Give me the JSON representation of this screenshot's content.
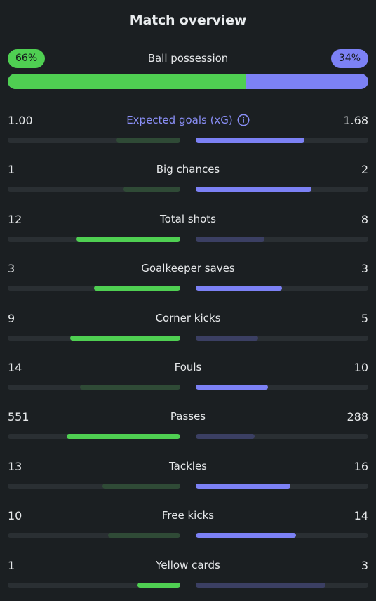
{
  "title": "Match overview",
  "colors": {
    "home_strong": "#4fcf52",
    "home_weak": "#2f4a36",
    "away_strong": "#7c81f5",
    "away_weak": "#3b3f63"
  },
  "possession": {
    "label": "Ball possession",
    "home_label": "66%",
    "away_label": "34%",
    "home_value": 66,
    "away_value": 34
  },
  "stats": [
    {
      "label": "Expected goals (xG)",
      "home": "1.00",
      "away": "1.68",
      "home_fill": 0.37,
      "away_fill": 0.63,
      "winner": "away",
      "accent": true,
      "info_icon": "info-icon"
    },
    {
      "label": "Big chances",
      "home": "1",
      "away": "2",
      "home_fill": 0.33,
      "away_fill": 0.67,
      "winner": "away"
    },
    {
      "label": "Total shots",
      "home": "12",
      "away": "8",
      "home_fill": 0.6,
      "away_fill": 0.4,
      "winner": "home"
    },
    {
      "label": "Goalkeeper saves",
      "home": "3",
      "away": "3",
      "home_fill": 0.5,
      "away_fill": 0.5,
      "winner": "both"
    },
    {
      "label": "Corner kicks",
      "home": "9",
      "away": "5",
      "home_fill": 0.64,
      "away_fill": 0.36,
      "winner": "home"
    },
    {
      "label": "Fouls",
      "home": "14",
      "away": "10",
      "home_fill": 0.58,
      "away_fill": 0.42,
      "winner": "away"
    },
    {
      "label": "Passes",
      "home": "551",
      "away": "288",
      "home_fill": 0.66,
      "away_fill": 0.34,
      "winner": "home"
    },
    {
      "label": "Tackles",
      "home": "13",
      "away": "16",
      "home_fill": 0.45,
      "away_fill": 0.55,
      "winner": "away"
    },
    {
      "label": "Free kicks",
      "home": "10",
      "away": "14",
      "home_fill": 0.42,
      "away_fill": 0.58,
      "winner": "away"
    },
    {
      "label": "Yellow cards",
      "home": "1",
      "away": "3",
      "home_fill": 0.25,
      "away_fill": 0.75,
      "winner": "home"
    }
  ]
}
